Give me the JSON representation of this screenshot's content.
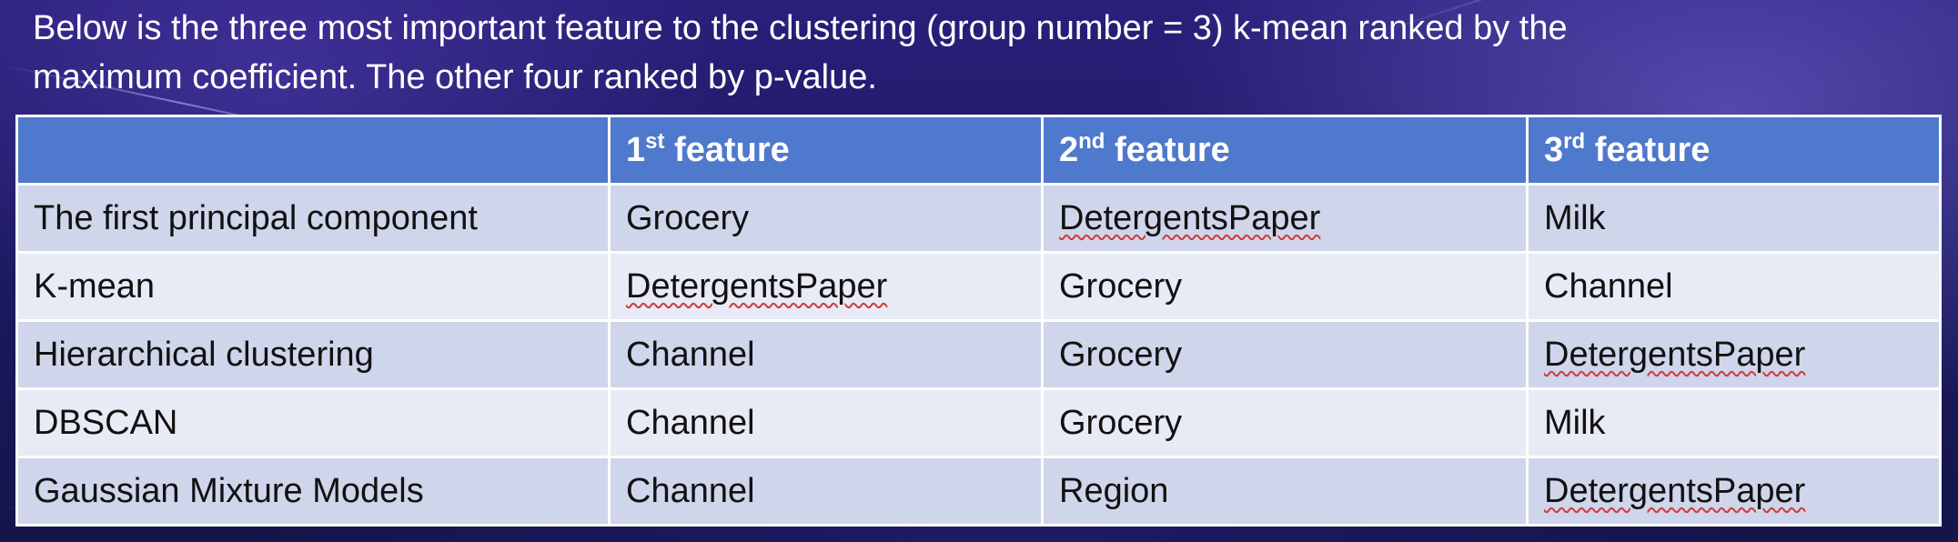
{
  "caption": {
    "line1": "Below is the three most important feature to the clustering (group number = 3) k-mean ranked by the",
    "line2": "maximum coefficient. The other four ranked by p-value."
  },
  "table": {
    "headers": [
      {
        "num": "",
        "sup": "",
        "text": ""
      },
      {
        "num": "1",
        "sup": "st",
        "text": " feature"
      },
      {
        "num": "2",
        "sup": "nd",
        "text": " feature"
      },
      {
        "num": "3",
        "sup": "rd",
        "text": " feature"
      }
    ],
    "rows": [
      {
        "method": "The first principal component",
        "f1": "Grocery",
        "f2": "DetergentsPaper",
        "f3": "Milk"
      },
      {
        "method": "K-mean",
        "f1": "DetergentsPaper",
        "f2": "Grocery",
        "f3": "Channel"
      },
      {
        "method": "Hierarchical clustering",
        "f1": "Channel",
        "f2": "Grocery",
        "f3": "DetergentsPaper"
      },
      {
        "method": "DBSCAN",
        "f1": "Channel",
        "f2": "Grocery",
        "f3": "Milk"
      },
      {
        "method": "Gaussian Mixture Models",
        "f1": "Channel",
        "f2": "Region",
        "f3": "DetergentsPaper"
      }
    ]
  },
  "colors": {
    "header_bg": "#4f79cc",
    "row_odd": "#cfd5ea",
    "row_even": "#e8ebf5",
    "spellcheck": "#d23a3a"
  }
}
